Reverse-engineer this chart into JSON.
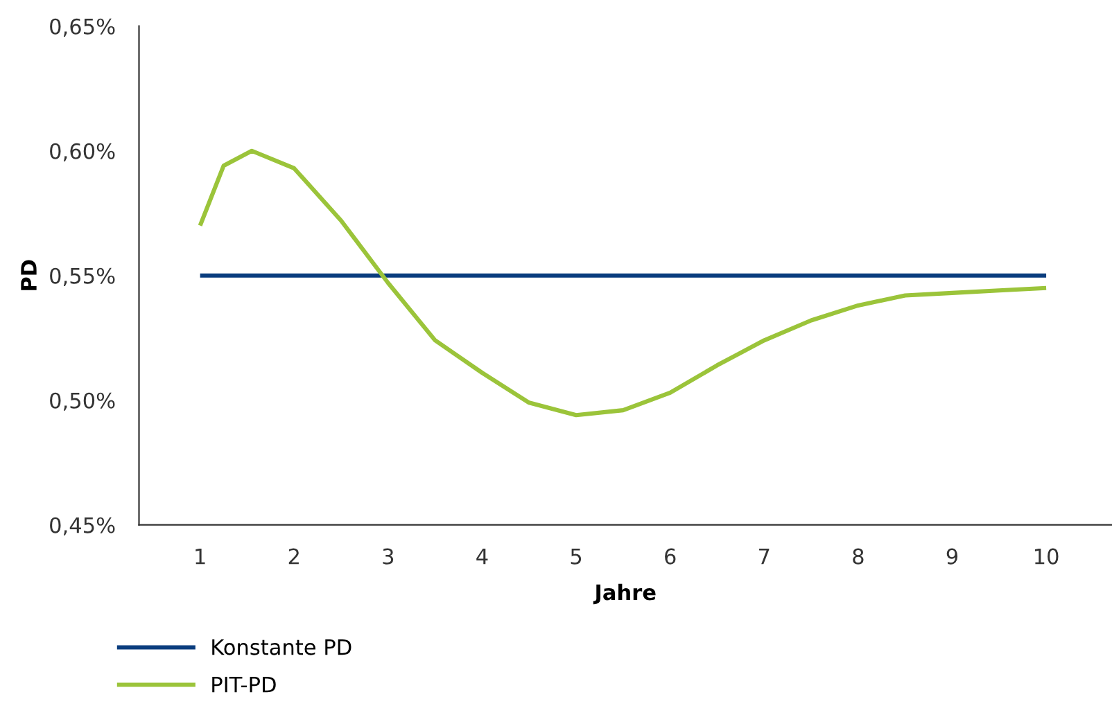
{
  "chart_data": {
    "type": "line",
    "xlabel": "Jahre",
    "ylabel": "PD",
    "x": [
      1,
      1.25,
      1.55,
      2,
      2.5,
      3,
      3.5,
      4,
      4.5,
      5,
      5.5,
      6,
      6.5,
      7,
      7.5,
      8,
      8.5,
      9,
      9.5,
      10
    ],
    "series": [
      {
        "name": "Konstante PD",
        "color": "#0a3d7e",
        "x": [
          1,
          10
        ],
        "values": [
          0.55,
          0.55
        ]
      },
      {
        "name": "PIT-PD",
        "color": "#9bc43a",
        "values": [
          0.57,
          0.594,
          0.6,
          0.593,
          0.572,
          0.547,
          0.524,
          0.511,
          0.499,
          0.494,
          0.496,
          0.503,
          0.514,
          0.524,
          0.532,
          0.538,
          0.542,
          0.543,
          0.544,
          0.545
        ]
      }
    ],
    "xlim": [
      0.35,
      10.7
    ],
    "xticks": [
      1,
      2,
      3,
      4,
      5,
      6,
      7,
      8,
      9,
      10
    ],
    "ylim": [
      0.45,
      0.65
    ],
    "yticks": [
      {
        "value": 0.45,
        "label": "0,45%"
      },
      {
        "value": 0.5,
        "label": "0,50%"
      },
      {
        "value": 0.55,
        "label": "0,55%"
      },
      {
        "value": 0.6,
        "label": "0,60%"
      },
      {
        "value": 0.65,
        "label": "0,65%"
      }
    ],
    "grid": false,
    "legend": "bottom left",
    "line_style": "solid",
    "marker": "none"
  }
}
